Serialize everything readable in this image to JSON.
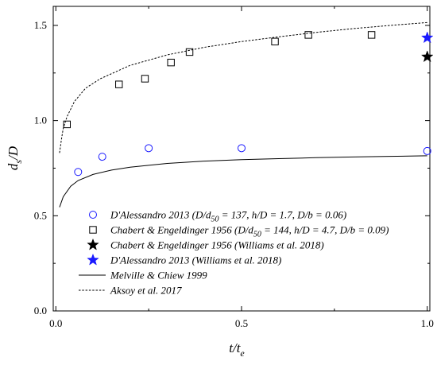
{
  "chart_data": {
    "type": "scatter",
    "xlabel": {
      "main": "t/t",
      "sub": "e"
    },
    "ylabel": {
      "main": "d",
      "sub": "s",
      "tail": "/D"
    },
    "xlim": [
      0.0,
      1.0
    ],
    "ylim": [
      0.0,
      1.6
    ],
    "xticks": [
      "0.0",
      "0.5",
      "1.0"
    ],
    "yticks": [
      "0.0",
      "0.5",
      "1.0",
      "1.5"
    ],
    "xtick_values": [
      0.0,
      0.5,
      1.0
    ],
    "ytick_values": [
      0.0,
      0.5,
      1.0,
      1.5
    ],
    "grid": false,
    "legend_position": "bottom-center",
    "series": [
      {
        "name": "D'Alessandro 2013 (D/d50 = 137, h/D = 1.7, D/b = 0.06)",
        "legend_parts": [
          [
            "D'Alessandro 2013 (D/d",
            ""
          ],
          [
            "50",
            "sub"
          ],
          [
            " = 137, h/D = 1.7, D/b = 0.06)",
            ""
          ]
        ],
        "marker": "circle",
        "color": "#1a1aff",
        "points": [
          [
            0.06,
            0.73
          ],
          [
            0.125,
            0.81
          ],
          [
            0.25,
            0.855
          ],
          [
            0.5,
            0.855
          ],
          [
            1.0,
            0.84
          ]
        ]
      },
      {
        "name": "Chabert & Engeldinger 1956 (D/d50 = 144, h/D = 4.7, D/b = 0.09)",
        "legend_parts": [
          [
            "Chabert & Engeldinger 1956 (D/d",
            ""
          ],
          [
            "50",
            "sub"
          ],
          [
            " = 144, h/D = 4.7, D/b = 0.09)",
            ""
          ]
        ],
        "marker": "square",
        "color": "#000000",
        "points": [
          [
            0.03,
            0.98
          ],
          [
            0.17,
            1.19
          ],
          [
            0.24,
            1.22
          ],
          [
            0.31,
            1.305
          ],
          [
            0.36,
            1.36
          ],
          [
            0.59,
            1.415
          ],
          [
            0.68,
            1.45
          ],
          [
            0.85,
            1.45
          ]
        ]
      },
      {
        "name": "Chabert & Engeldinger 1956 (Williams et al. 2018)",
        "legend_parts": [
          [
            "Chabert & Engeldinger 1956 (Williams et al. 2018)",
            ""
          ]
        ],
        "marker": "star",
        "color": "#000000",
        "points": [
          [
            1.0,
            1.335
          ]
        ]
      },
      {
        "name": "D'Alessandro 2013 (Williams et al. 2018)",
        "legend_parts": [
          [
            "D'Alessandro 2013 (Williams et al. 2018)",
            ""
          ]
        ],
        "marker": "star",
        "color": "#1a1aff",
        "points": [
          [
            1.0,
            1.435
          ]
        ]
      },
      {
        "name": "Melville & Chiew 1999",
        "legend_parts": [
          [
            "Melville & Chiew 1999",
            ""
          ]
        ],
        "marker": "line-solid",
        "color": "#000000",
        "points": [
          [
            0.01,
            0.545
          ],
          [
            0.02,
            0.6
          ],
          [
            0.04,
            0.655
          ],
          [
            0.06,
            0.685
          ],
          [
            0.1,
            0.717
          ],
          [
            0.15,
            0.74
          ],
          [
            0.2,
            0.755
          ],
          [
            0.3,
            0.775
          ],
          [
            0.4,
            0.787
          ],
          [
            0.5,
            0.795
          ],
          [
            0.6,
            0.8
          ],
          [
            0.7,
            0.805
          ],
          [
            0.8,
            0.809
          ],
          [
            0.9,
            0.812
          ],
          [
            1.0,
            0.815
          ]
        ]
      },
      {
        "name": "Aksoy et al. 2017",
        "legend_parts": [
          [
            "Aksoy et al. 2017",
            ""
          ]
        ],
        "marker": "line-dashed",
        "color": "#000000",
        "points": [
          [
            0.01,
            0.83
          ],
          [
            0.015,
            0.9
          ],
          [
            0.02,
            0.96
          ],
          [
            0.03,
            1.02
          ],
          [
            0.05,
            1.1
          ],
          [
            0.08,
            1.17
          ],
          [
            0.12,
            1.22
          ],
          [
            0.2,
            1.29
          ],
          [
            0.3,
            1.345
          ],
          [
            0.4,
            1.385
          ],
          [
            0.5,
            1.415
          ],
          [
            0.6,
            1.44
          ],
          [
            0.7,
            1.463
          ],
          [
            0.8,
            1.483
          ],
          [
            0.9,
            1.5
          ],
          [
            1.0,
            1.515
          ]
        ]
      }
    ]
  }
}
